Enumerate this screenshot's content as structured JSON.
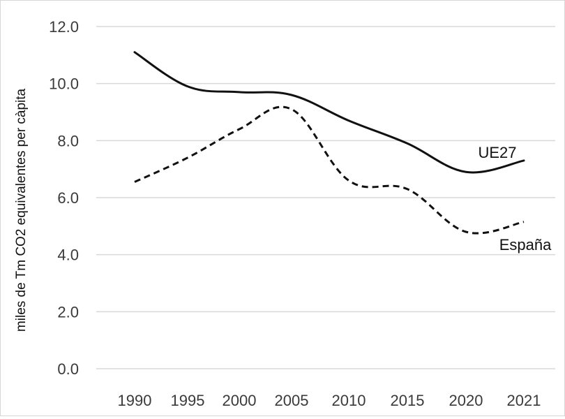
{
  "chart_data": {
    "type": "line",
    "categories": [
      "1990",
      "1995",
      "2000",
      "2005",
      "2010",
      "2015",
      "2020",
      "2021"
    ],
    "series": [
      {
        "name": "UE27",
        "values": [
          11.1,
          9.9,
          9.7,
          9.6,
          8.7,
          7.9,
          6.9,
          7.3
        ],
        "color": "#111111",
        "dash": "solid"
      },
      {
        "name": "España",
        "values": [
          6.55,
          7.4,
          8.4,
          9.1,
          6.6,
          6.3,
          4.8,
          5.15
        ],
        "color": "#111111",
        "dash": "dashed"
      }
    ],
    "y_ticks": [
      "0.0",
      "2.0",
      "4.0",
      "6.0",
      "8.0",
      "10.0",
      "12.0"
    ],
    "ylabel": "miles de Tm CO2 equivalentes per càpita",
    "xlabel": "",
    "ylim": [
      0,
      12
    ],
    "grid": true,
    "legend": "inline labels at line ends"
  }
}
